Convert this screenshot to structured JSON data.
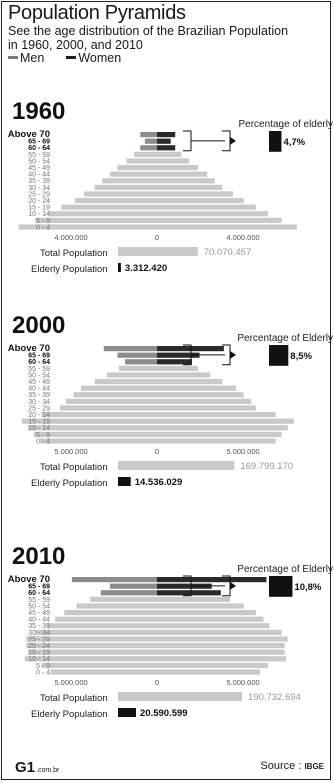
{
  "title": "Population Pyramids",
  "subtitle_lines": [
    "See the age distribution of the Brazilian Population",
    "in 1960, 2000, and 2010"
  ],
  "legend": {
    "men": "Men",
    "women": "Women"
  },
  "footer": {
    "logo": "G1",
    "logo_suffix": ".com.br",
    "source_label": "Source :",
    "source": "IBGE"
  },
  "colors": {
    "men": "#7a7a7a",
    "women": "#1e1e1e",
    "base": "#c9c9c9",
    "elderly_men": "#8c8c8c",
    "elderly_women": "#2a2a2a"
  },
  "chart_data": [
    {
      "type": "bar",
      "year": "1960",
      "age_groups": [
        "Above 70",
        "65 - 69",
        "60 - 64",
        "55 - 59",
        "50 - 54",
        "45 - 49",
        "40 - 44",
        "35 - 39",
        "30 - 34",
        "25 - 29",
        "20 - 24",
        "15 - 19",
        "10 - 14",
        "5 - 9",
        "0 - 4"
      ],
      "series": [
        {
          "name": "Men",
          "values": [
            550000,
            400000,
            550000,
            750000,
            1000000,
            1300000,
            1550000,
            1800000,
            2050000,
            2400000,
            2700000,
            3150000,
            3550000,
            4000000,
            4550000
          ]
        },
        {
          "name": "Women",
          "values": [
            600000,
            450000,
            600000,
            800000,
            1050000,
            1350000,
            1650000,
            1900000,
            2150000,
            2500000,
            2850000,
            3250000,
            3650000,
            4100000,
            4600000
          ]
        }
      ],
      "xticks": [
        "4.000.000",
        "0",
        "4.000.000"
      ],
      "xlim": [
        -5000000,
        5000000
      ],
      "elderly_label": "Percentage of elderly",
      "elderly_percent": "4,7%",
      "total_population_label": "Total Population",
      "total_population": "70.070.457",
      "elderly_population_label": "Elderly Population",
      "elderly_population": "3.312.420"
    },
    {
      "type": "bar",
      "year": "2000",
      "age_groups": [
        "Above 70",
        "65 - 69",
        "60 - 64",
        "55 - 59",
        "50 - 54",
        "45 - 49",
        "40 - 44",
        "35 - 39",
        "30 - 34",
        "25 - 29",
        "20 - 24",
        "15 - 19",
        "10 - 14",
        "5 - 9",
        "0 - 4"
      ],
      "series": [
        {
          "name": "Men",
          "values": [
            3500000,
            2600000,
            2100000,
            2500000,
            3300000,
            4100000,
            5000000,
            5500000,
            6000000,
            6400000,
            7600000,
            8900000,
            8500000,
            8100000,
            7700000
          ]
        },
        {
          "name": "Women",
          "values": [
            4400000,
            2800000,
            2300000,
            2700000,
            3500000,
            4300000,
            5200000,
            5700000,
            6200000,
            6500000,
            7800000,
            9000000,
            8600000,
            8200000,
            7800000
          ]
        }
      ],
      "xticks": [
        "5.000.000",
        "0",
        "5.000.000"
      ],
      "xlim": [
        -10000000,
        10000000
      ],
      "elderly_label": "Percentage of Elderly",
      "elderly_percent": "8,5%",
      "total_population_label": "Total Population",
      "total_population": "169.799.170",
      "elderly_population_label": "Elderly Population",
      "elderly_population": "14.536.029"
    },
    {
      "type": "bar",
      "year": "2010",
      "age_groups": [
        "Above 70",
        "65 - 69",
        "60 - 64",
        "55 - 59",
        "50 - 54",
        "45 - 49",
        "40 - 44",
        "35 - 39",
        "30 - 34",
        "25 - 29",
        "20 - 24",
        "15 - 19",
        "10 - 14",
        "5 - 9",
        "0 - 4"
      ],
      "series": [
        {
          "name": "Men",
          "values": [
            5600000,
            3100000,
            3700000,
            4400000,
            5300000,
            6100000,
            6700000,
            7200000,
            8000000,
            8600000,
            8600000,
            8500000,
            8700000,
            7600000,
            7000000
          ]
        },
        {
          "name": "Women",
          "values": [
            7200000,
            3600000,
            4200000,
            4800000,
            5700000,
            6500000,
            7000000,
            7400000,
            8200000,
            8600000,
            8400000,
            8400000,
            8500000,
            7300000,
            6800000
          ]
        }
      ],
      "xticks": [
        "5.000.000",
        "0",
        "5.000.000"
      ],
      "xlim": [
        -10000000,
        10000000
      ],
      "elderly_label": "Percentage of Elderly",
      "elderly_percent": "10,8%",
      "total_population_label": "Total Population",
      "total_population": "190.732.694",
      "elderly_population_label": "Elderly Population",
      "elderly_population": "20.590.599"
    }
  ]
}
